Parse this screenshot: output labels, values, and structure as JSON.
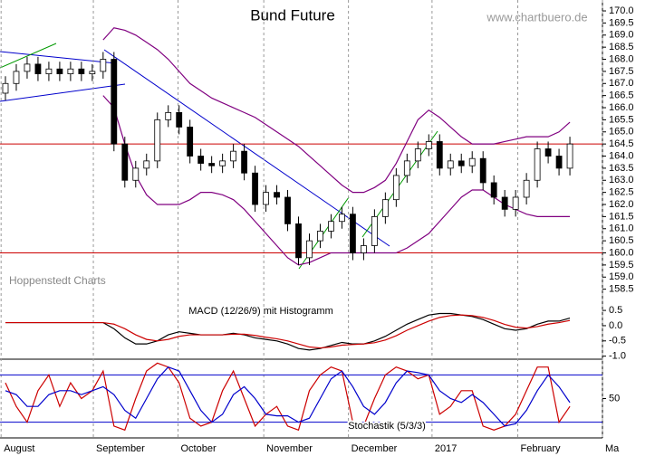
{
  "chart_data": [
    {
      "type": "candlestick",
      "title": "Bund Future",
      "source": "www.chartbuero.de",
      "note": "Hoppenstedt Charts",
      "open": [
        166.6,
        167.0,
        167.5,
        167.8,
        167.4,
        167.6,
        167.4,
        167.6,
        167.4,
        167.5,
        168.0,
        164.5,
        163.0,
        163.5,
        163.8,
        165.5,
        165.8,
        165.2,
        164.0,
        163.7,
        163.6,
        163.8,
        164.2,
        163.3,
        162.0,
        162.5,
        162.3,
        161.2,
        159.8,
        160.5,
        160.9,
        161.3,
        161.6,
        160.0,
        160.3,
        161.5,
        162.2,
        163.2,
        163.8,
        164.3,
        164.6,
        163.5,
        163.8,
        163.6,
        163.9,
        162.9,
        162.3,
        161.8,
        162.3,
        163.0,
        164.3,
        164.0,
        163.5
      ],
      "high": [
        167.3,
        167.8,
        168.1,
        168.1,
        167.9,
        167.9,
        167.9,
        167.9,
        167.8,
        168.3,
        168.3,
        164.8,
        163.8,
        164.1,
        165.8,
        166.1,
        166.1,
        165.5,
        164.3,
        164.0,
        164.1,
        164.5,
        164.5,
        163.6,
        162.8,
        162.8,
        162.6,
        161.5,
        160.8,
        161.2,
        161.6,
        161.9,
        161.9,
        160.6,
        161.8,
        162.5,
        163.5,
        164.1,
        164.6,
        164.9,
        164.9,
        164.1,
        164.1,
        164.2,
        164.2,
        163.2,
        162.6,
        162.6,
        163.3,
        164.6,
        164.6,
        164.3,
        164.8
      ],
      "low": [
        166.3,
        166.7,
        167.2,
        167.1,
        167.1,
        167.1,
        167.1,
        167.1,
        167.1,
        167.2,
        164.2,
        162.7,
        162.7,
        163.2,
        163.5,
        165.2,
        164.9,
        163.7,
        163.4,
        163.3,
        163.3,
        163.5,
        163.0,
        161.7,
        161.7,
        162.0,
        160.9,
        159.5,
        159.5,
        160.2,
        160.6,
        161.0,
        159.7,
        159.7,
        160.0,
        161.2,
        161.9,
        162.9,
        163.5,
        164.0,
        163.2,
        163.2,
        163.3,
        163.3,
        162.6,
        162.0,
        161.5,
        161.5,
        162.0,
        162.7,
        163.7,
        163.2,
        163.2
      ],
      "close": [
        167.0,
        167.5,
        167.8,
        167.4,
        167.6,
        167.4,
        167.6,
        167.4,
        167.5,
        168.0,
        164.5,
        163.0,
        163.5,
        163.8,
        165.5,
        165.8,
        165.2,
        164.0,
        163.7,
        163.6,
        163.8,
        164.2,
        163.3,
        162.0,
        162.5,
        162.3,
        161.2,
        159.8,
        160.5,
        160.9,
        161.3,
        161.6,
        160.0,
        160.3,
        161.5,
        162.2,
        163.2,
        163.8,
        164.3,
        164.6,
        163.5,
        163.8,
        163.6,
        163.9,
        162.9,
        162.3,
        161.8,
        162.3,
        163.0,
        164.3,
        164.0,
        163.5,
        164.5
      ],
      "up_color": "#ffffff",
      "down_color": "#000000",
      "bands": {
        "color": "#800080",
        "upper": [
          null,
          null,
          null,
          null,
          null,
          null,
          null,
          null,
          null,
          168.8,
          169.3,
          169.2,
          169.0,
          168.7,
          168.4,
          168.0,
          167.5,
          167.0,
          166.7,
          166.4,
          166.2,
          166.0,
          165.8,
          165.6,
          165.3,
          165.0,
          164.7,
          164.4,
          164.0,
          163.6,
          163.2,
          162.8,
          162.5,
          162.5,
          162.7,
          163.0,
          163.7,
          164.6,
          165.5,
          165.9,
          165.6,
          165.2,
          164.8,
          164.5,
          164.5,
          164.5,
          164.6,
          164.7,
          164.8,
          164.8,
          164.8,
          165.0,
          165.4
        ],
        "lower": [
          null,
          null,
          null,
          null,
          null,
          null,
          null,
          null,
          null,
          166.5,
          166.0,
          164.5,
          163.2,
          162.4,
          162.0,
          162.0,
          162.0,
          162.2,
          162.5,
          162.5,
          162.4,
          162.2,
          161.8,
          161.3,
          160.8,
          160.3,
          159.8,
          159.5,
          159.6,
          159.8,
          160.0,
          160.0,
          160.0,
          160.0,
          160.0,
          160.0,
          160.0,
          160.2,
          160.5,
          160.8,
          161.3,
          161.8,
          162.3,
          162.6,
          162.6,
          162.3,
          162.0,
          161.8,
          161.6,
          161.5,
          161.5,
          161.5,
          161.5
        ]
      },
      "levels": [
        164.5,
        160.0
      ],
      "level_color": "#cc0000",
      "ylim": [
        158.0,
        170.45
      ],
      "yticks": [
        {
          "value": 170.0,
          "label": "170.0"
        },
        169.5,
        {
          "value": 169.0,
          "label": "169.0"
        },
        168.5,
        {
          "value": 168.0,
          "label": "168.0"
        },
        167.5,
        {
          "value": 167.0,
          "label": "167.0"
        },
        166.5,
        {
          "value": 166.0,
          "label": "166.0"
        },
        165.5,
        {
          "value": 165.0,
          "label": "165.0"
        },
        164.5,
        {
          "value": 164.0,
          "label": "164.0"
        },
        163.5,
        {
          "value": 163.0,
          "label": "163.0"
        },
        162.5,
        {
          "value": 162.0,
          "label": "162.0"
        },
        161.5,
        {
          "value": 161.0,
          "label": "161.0"
        },
        160.5,
        {
          "value": 160.0,
          "label": "160.0"
        },
        159.5,
        {
          "value": 159.0,
          "label": "159.0"
        },
        158.5
      ],
      "xlim": [
        -0.5,
        55
      ],
      "xticks": [
        {
          "value": -0.4,
          "label": "August"
        },
        {
          "value": 8.1,
          "label": "September"
        },
        {
          "value": 15.9,
          "label": "October"
        },
        {
          "value": 23.8,
          "label": "November"
        },
        {
          "value": 31.6,
          "label": "December"
        },
        {
          "value": 39.3,
          "label": "2017"
        },
        {
          "value": 47.2,
          "label": "February"
        },
        {
          "value": 55,
          "label": "Ma"
        }
      ]
    },
    {
      "type": "line",
      "label": "MACD (12/26/9) mit Histogramm",
      "series": [
        {
          "color": "#000000",
          "values": [
            0.1,
            0.1,
            0.1,
            0.1,
            0.1,
            0.1,
            0.1,
            0.1,
            0.1,
            0.1,
            -0.1,
            -0.4,
            -0.6,
            -0.6,
            -0.5,
            -0.3,
            -0.2,
            -0.25,
            -0.3,
            -0.3,
            -0.3,
            -0.25,
            -0.3,
            -0.4,
            -0.45,
            -0.5,
            -0.6,
            -0.75,
            -0.8,
            -0.75,
            -0.65,
            -0.55,
            -0.6,
            -0.6,
            -0.5,
            -0.35,
            -0.15,
            0.05,
            0.2,
            0.35,
            0.4,
            0.4,
            0.35,
            0.3,
            0.2,
            0.05,
            -0.1,
            -0.15,
            -0.1,
            0.05,
            0.15,
            0.15,
            0.25
          ]
        },
        {
          "color": "#cc0000",
          "values": [
            0.1,
            0.1,
            0.1,
            0.1,
            0.1,
            0.1,
            0.1,
            0.1,
            0.1,
            0.1,
            0.05,
            -0.1,
            -0.3,
            -0.45,
            -0.5,
            -0.45,
            -0.35,
            -0.3,
            -0.3,
            -0.3,
            -0.3,
            -0.28,
            -0.28,
            -0.32,
            -0.38,
            -0.43,
            -0.5,
            -0.6,
            -0.7,
            -0.73,
            -0.7,
            -0.64,
            -0.62,
            -0.6,
            -0.56,
            -0.47,
            -0.33,
            -0.15,
            0.0,
            0.15,
            0.27,
            0.33,
            0.35,
            0.33,
            0.27,
            0.17,
            0.04,
            -0.05,
            -0.08,
            -0.03,
            0.05,
            0.1,
            0.17
          ]
        }
      ],
      "ylim": [
        -1.1,
        0.8
      ],
      "yticks": [
        0.5,
        {
          "value": 0.0,
          "label": "0.0"
        },
        -0.5,
        {
          "value": -1.0,
          "label": "-1.0"
        }
      ]
    },
    {
      "type": "line",
      "label": "Stochastik (5/3/3)",
      "series": [
        {
          "color": "#cc0000",
          "values": [
            70,
            40,
            20,
            60,
            80,
            40,
            70,
            50,
            60,
            85,
            15,
            10,
            50,
            85,
            95,
            90,
            70,
            25,
            15,
            20,
            60,
            85,
            50,
            15,
            30,
            40,
            15,
            10,
            60,
            80,
            90,
            85,
            20,
            15,
            50,
            80,
            90,
            85,
            75,
            80,
            30,
            40,
            60,
            60,
            15,
            10,
            15,
            30,
            60,
            90,
            90,
            20,
            40
          ]
        },
        {
          "color": "#0000cc",
          "values": [
            60,
            55,
            40,
            40,
            55,
            60,
            60,
            55,
            60,
            65,
            55,
            35,
            25,
            50,
            75,
            90,
            85,
            60,
            35,
            20,
            30,
            55,
            65,
            50,
            30,
            28,
            28,
            20,
            25,
            50,
            75,
            85,
            65,
            40,
            30,
            45,
            70,
            85,
            83,
            80,
            60,
            50,
            45,
            55,
            45,
            30,
            15,
            18,
            35,
            60,
            80,
            65,
            45
          ]
        }
      ],
      "levels": [
        80,
        20
      ],
      "level_color": "#0000cc",
      "ylim": [
        0,
        100
      ],
      "yticks": [
        50
      ]
    }
  ]
}
